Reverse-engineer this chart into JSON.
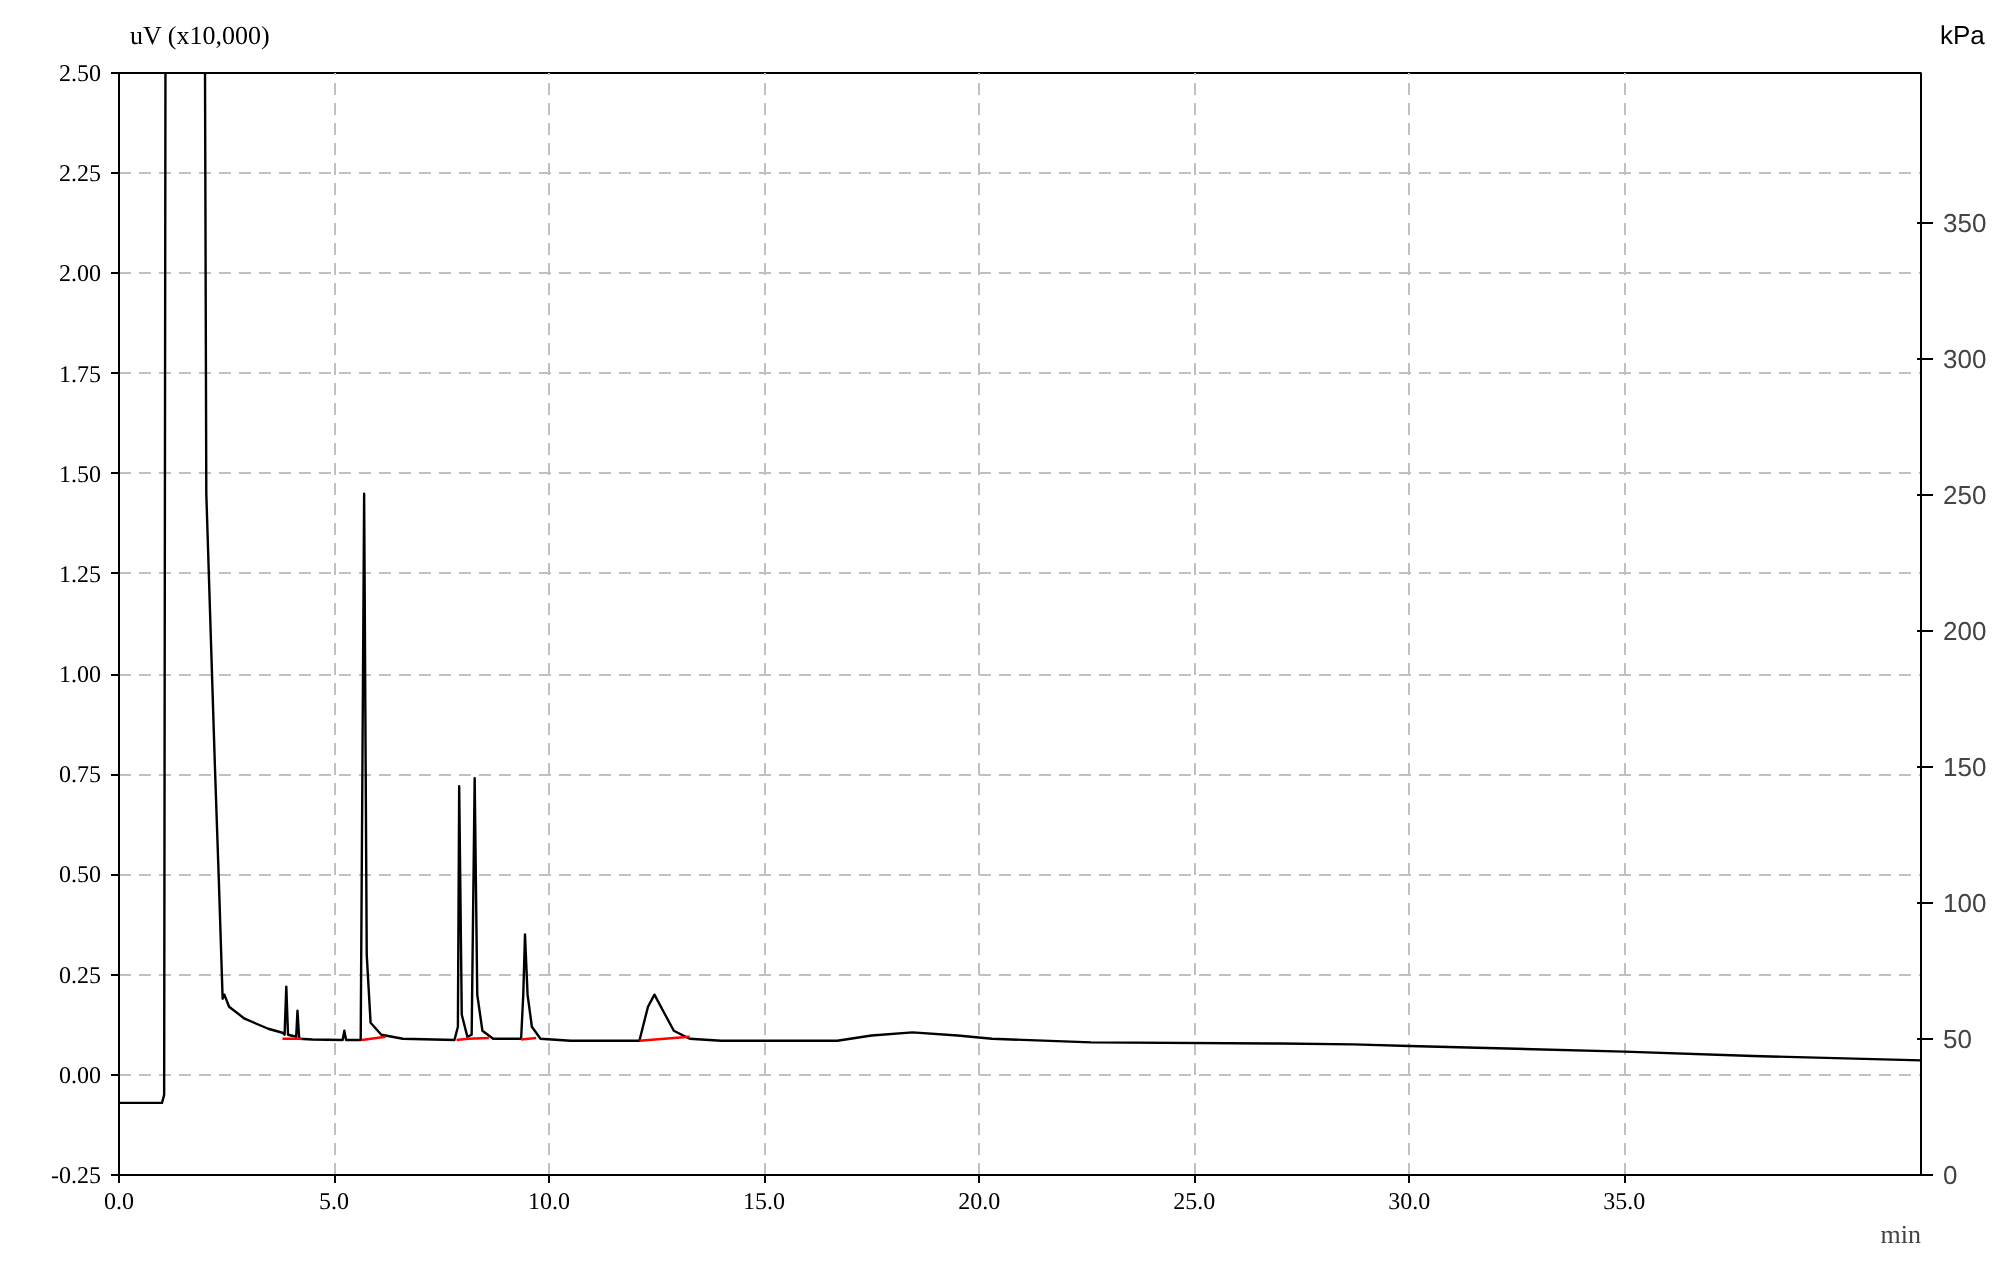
{
  "chart_data": {
    "type": "line",
    "xlabel": "min",
    "ylabel": "uV (x10,000)",
    "y2label": "kPa",
    "xlim": [
      0,
      41.9
    ],
    "ylim": [
      -0.25,
      2.5
    ],
    "y2lim": [
      0,
      405
    ],
    "xticks": [
      {
        "value": 0,
        "label": "0.0"
      },
      {
        "value": 5,
        "label": "5.0"
      },
      {
        "value": 10,
        "label": "10.0"
      },
      {
        "value": 15,
        "label": "15.0"
      },
      {
        "value": 20,
        "label": "20.0"
      },
      {
        "value": 25,
        "label": "25.0"
      },
      {
        "value": 30,
        "label": "30.0"
      },
      {
        "value": 35,
        "label": "35.0"
      }
    ],
    "yticks": [
      {
        "value": -0.25,
        "label": "-0.25"
      },
      {
        "value": 0,
        "label": "0.00"
      },
      {
        "value": 0.25,
        "label": "0.25"
      },
      {
        "value": 0.5,
        "label": "0.50"
      },
      {
        "value": 0.75,
        "label": "0.75"
      },
      {
        "value": 1,
        "label": "1.00"
      },
      {
        "value": 1.25,
        "label": "1.25"
      },
      {
        "value": 1.5,
        "label": "1.50"
      },
      {
        "value": 1.75,
        "label": "1.75"
      },
      {
        "value": 2,
        "label": "2.00"
      },
      {
        "value": 2.25,
        "label": "2.25"
      },
      {
        "value": 2.5,
        "label": "2.50"
      }
    ],
    "y2ticks": [
      0,
      50,
      100,
      150,
      200,
      250,
      300,
      350
    ],
    "grid": true,
    "marker": "none",
    "line_style": "solid",
    "series": [
      {
        "color": "#000000",
        "x": [
          0,
          1.0,
          1.05,
          1.08,
          1.5,
          2.0,
          2.03,
          2.23,
          2.32,
          2.41,
          2.45,
          2.56,
          2.92,
          3.47,
          3.8,
          3.85,
          3.89,
          3.93,
          4.12,
          4.15,
          4.19,
          4.5,
          5.2,
          5.24,
          5.28,
          5.62,
          5.7,
          5.76,
          5.85,
          6.1,
          6.6,
          7.8,
          7.88,
          7.91,
          7.97,
          8.1,
          8.2,
          8.27,
          8.33,
          8.45,
          8.7,
          9.35,
          9.4,
          9.44,
          9.5,
          9.6,
          9.8,
          10.5,
          12.1,
          12.3,
          12.45,
          12.65,
          12.9,
          13.27,
          14.0,
          16.7,
          17.5,
          18.45,
          19.5,
          20.3,
          22.6,
          27.0,
          28.7,
          30.0,
          35.0,
          38.0,
          41.9
        ],
        "values": [
          -0.07,
          -0.07,
          -0.05,
          2.5,
          null,
          2.5,
          1.45,
          0.77,
          0.49,
          0.19,
          0.2,
          0.17,
          0.14,
          0.115,
          0.105,
          0.1,
          0.22,
          0.1,
          0.095,
          0.16,
          0.09,
          0.088,
          0.087,
          0.11,
          0.087,
          0.087,
          1.45,
          0.3,
          0.13,
          0.1,
          0.09,
          0.087,
          0.12,
          0.72,
          0.15,
          0.095,
          0.1,
          0.74,
          0.2,
          0.11,
          0.09,
          0.09,
          0.2,
          0.35,
          0.2,
          0.12,
          0.09,
          0.085,
          0.085,
          0.17,
          0.2,
          0.16,
          0.11,
          0.09,
          0.085,
          0.085,
          0.098,
          0.106,
          0.098,
          0.09,
          0.081,
          0.078,
          0.076,
          0.072,
          0.058,
          0.047,
          0.036
        ]
      },
      {
        "color": "#ff0000",
        "x": [
          3.8,
          4.25,
          5.0,
          5.65,
          6.2,
          7.0,
          7.85,
          8.12,
          8.6,
          9.0,
          9.35,
          9.7,
          11.0,
          12.1,
          13.27
        ],
        "values": [
          0.09,
          0.09,
          null,
          0.087,
          0.095,
          null,
          0.087,
          0.09,
          0.092,
          null,
          0.088,
          0.092,
          null,
          0.085,
          0.095
        ]
      }
    ]
  }
}
